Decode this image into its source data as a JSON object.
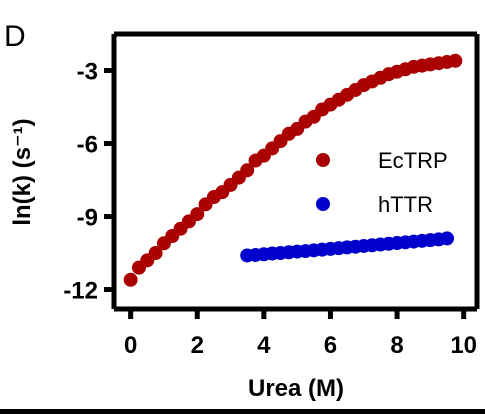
{
  "chart_data": {
    "type": "scatter",
    "panel_label": "D",
    "title": "",
    "xlabel": "Urea (M)",
    "ylabel": "ln(k) (s⁻¹)",
    "xlim": [
      -0.5,
      10.4
    ],
    "ylim": [
      -12.8,
      -1.5
    ],
    "x_ticks": [
      0,
      2,
      4,
      6,
      8,
      10
    ],
    "y_ticks": [
      -12,
      -9,
      -6,
      -3
    ],
    "x_tick_labels": [
      "0",
      "2",
      "4",
      "6",
      "8",
      "10"
    ],
    "y_tick_labels": [
      "-12",
      "-9",
      "-6",
      "-3"
    ],
    "grid": false,
    "legend_position": "right",
    "series": [
      {
        "name": "EcTRP",
        "color": "#aa0000",
        "x": [
          0,
          0.25,
          0.5,
          0.75,
          1.0,
          1.25,
          1.5,
          1.75,
          2.0,
          2.25,
          2.5,
          2.75,
          3.0,
          3.25,
          3.5,
          3.75,
          4.0,
          4.25,
          4.5,
          4.75,
          5.0,
          5.25,
          5.5,
          5.75,
          6.0,
          6.25,
          6.5,
          6.75,
          7.0,
          7.25,
          7.5,
          7.75,
          8.0,
          8.25,
          8.5,
          8.75,
          9.0,
          9.25,
          9.5,
          9.75
        ],
        "y": [
          -11.6,
          -11.1,
          -10.8,
          -10.5,
          -10.1,
          -9.8,
          -9.5,
          -9.2,
          -8.9,
          -8.5,
          -8.2,
          -8.0,
          -7.7,
          -7.4,
          -7.1,
          -6.7,
          -6.5,
          -6.2,
          -5.9,
          -5.6,
          -5.4,
          -5.1,
          -4.9,
          -4.6,
          -4.4,
          -4.2,
          -4.0,
          -3.8,
          -3.6,
          -3.45,
          -3.3,
          -3.15,
          -3.05,
          -2.95,
          -2.85,
          -2.8,
          -2.75,
          -2.7,
          -2.65,
          -2.6
        ]
      },
      {
        "name": "hTTR",
        "color": "#0000cc",
        "x": [
          3.5,
          3.75,
          4.0,
          4.25,
          4.5,
          4.75,
          5.0,
          5.25,
          5.5,
          5.75,
          6.0,
          6.25,
          6.5,
          6.75,
          7.0,
          7.25,
          7.5,
          7.75,
          8.0,
          8.25,
          8.5,
          8.75,
          9.0,
          9.25,
          9.5
        ],
        "y": [
          -10.6,
          -10.58,
          -10.55,
          -10.52,
          -10.5,
          -10.47,
          -10.44,
          -10.42,
          -10.39,
          -10.36,
          -10.33,
          -10.3,
          -10.27,
          -10.24,
          -10.21,
          -10.18,
          -10.15,
          -10.12,
          -10.09,
          -10.06,
          -10.03,
          -10.0,
          -9.97,
          -9.94,
          -9.9
        ]
      }
    ]
  }
}
